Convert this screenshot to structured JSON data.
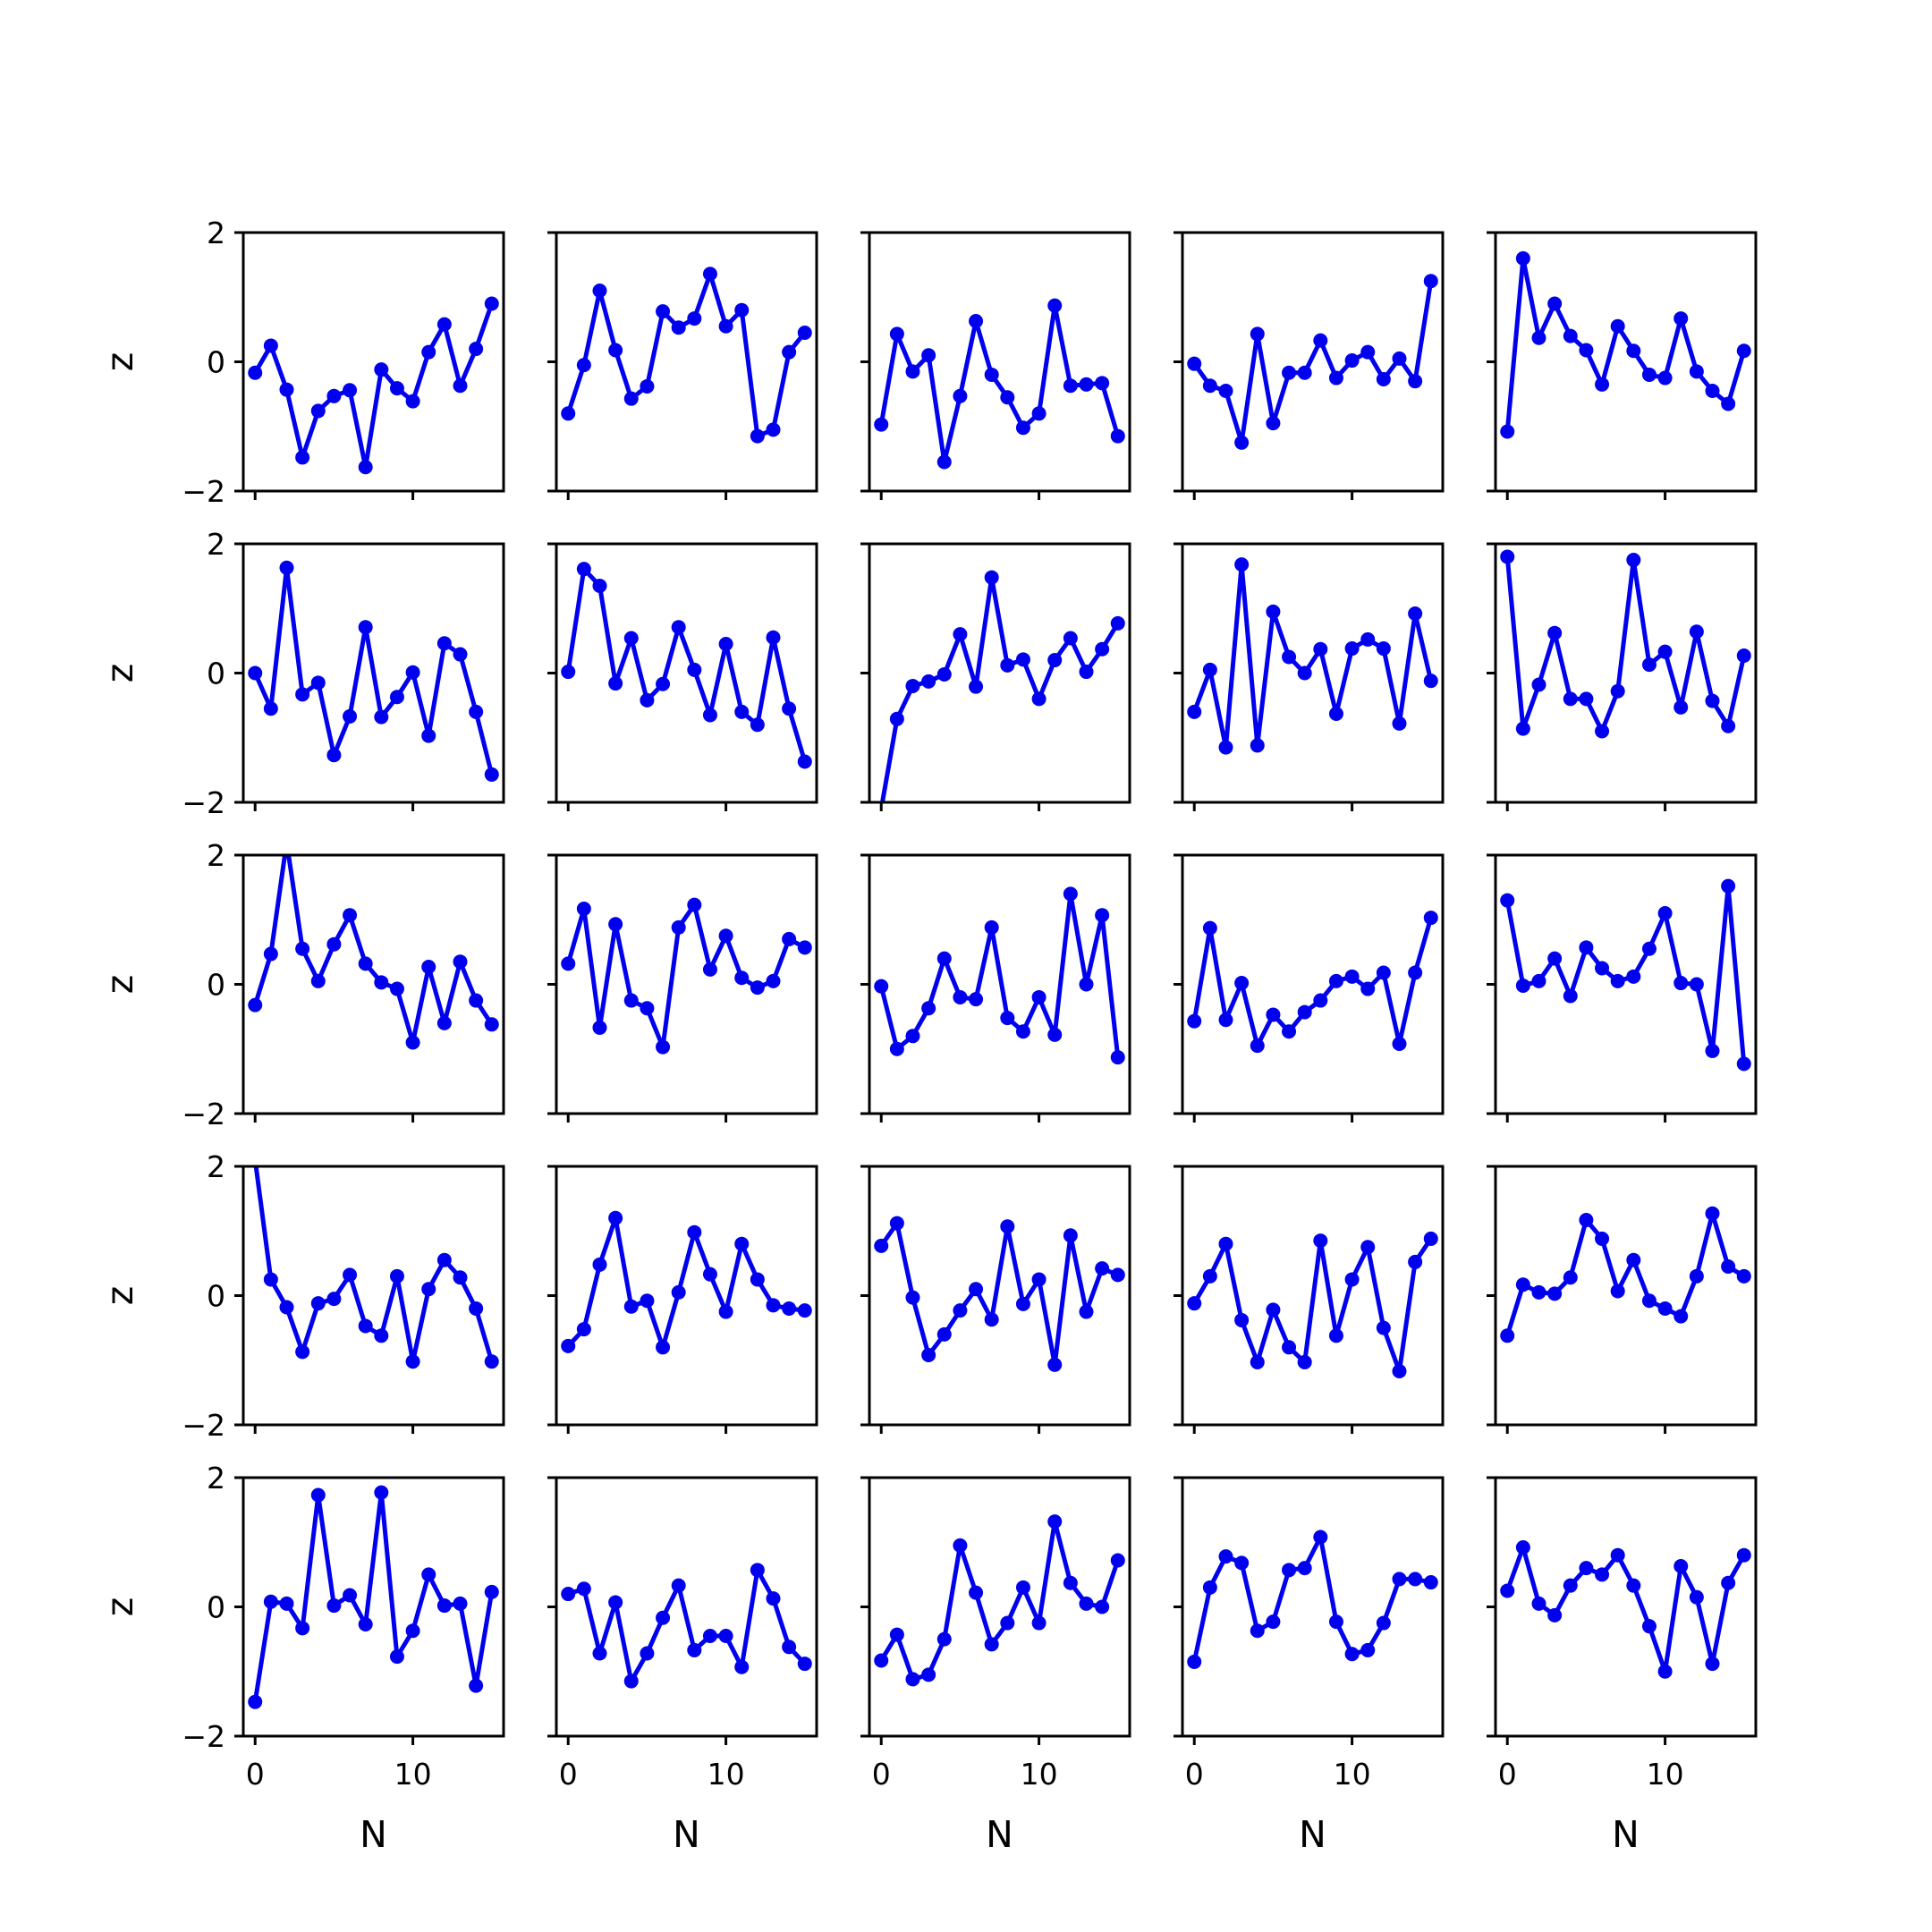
{
  "chart_data": {
    "type": "line",
    "layout": "5x5 small multiples",
    "xlabel": "N",
    "ylabel": "z",
    "xlim": [
      -0.75,
      15.75
    ],
    "ylim": [
      -2,
      2
    ],
    "xticks": [
      0,
      10
    ],
    "yticks": [
      -2,
      0,
      2
    ],
    "x": [
      0,
      1,
      2,
      3,
      4,
      5,
      6,
      7,
      8,
      9,
      10,
      11,
      12,
      13,
      14,
      15
    ],
    "line_color": "#0000ee",
    "marker": "circle",
    "panels": [
      {
        "values": [
          -0.17,
          0.25,
          -0.43,
          -1.48,
          -0.76,
          -0.53,
          -0.44,
          -1.63,
          -0.12,
          -0.41,
          -0.61,
          0.15,
          0.58,
          -0.37,
          0.2,
          0.9
        ]
      },
      {
        "values": [
          -0.8,
          -0.05,
          1.1,
          0.18,
          -0.57,
          -0.38,
          0.78,
          0.53,
          0.67,
          1.36,
          0.55,
          0.8,
          -1.15,
          -1.05,
          0.15,
          0.45
        ]
      },
      {
        "values": [
          -0.97,
          0.43,
          -0.15,
          0.1,
          -1.55,
          -0.53,
          0.63,
          -0.2,
          -0.55,
          -1.02,
          -0.8,
          0.87,
          -0.37,
          -0.35,
          -0.33,
          -1.15
        ]
      },
      {
        "values": [
          -0.03,
          -0.37,
          -0.45,
          -1.25,
          0.43,
          -0.95,
          -0.17,
          -0.17,
          0.33,
          -0.25,
          0.02,
          0.15,
          -0.27,
          0.05,
          -0.3,
          1.25
        ]
      },
      {
        "values": [
          -1.08,
          1.6,
          0.37,
          0.9,
          0.4,
          0.18,
          -0.35,
          0.55,
          0.17,
          -0.2,
          -0.25,
          0.67,
          -0.15,
          -0.45,
          -0.65,
          0.17
        ]
      },
      {
        "values": [
          0.0,
          -0.55,
          1.63,
          -0.33,
          -0.15,
          -1.27,
          -0.67,
          0.71,
          -0.68,
          -0.37,
          0.01,
          -0.97,
          0.46,
          0.29,
          -0.6,
          -1.57
        ]
      },
      {
        "values": [
          0.02,
          1.61,
          1.35,
          -0.16,
          0.54,
          -0.42,
          -0.17,
          0.71,
          0.05,
          -0.65,
          0.45,
          -0.6,
          -0.8,
          0.55,
          -0.55,
          -1.37
        ]
      },
      {
        "values": [
          -2.1,
          -0.71,
          -0.2,
          -0.13,
          -0.02,
          0.6,
          -0.21,
          1.48,
          0.12,
          0.21,
          -0.4,
          0.2,
          0.54,
          0.02,
          0.37,
          0.77
        ]
      },
      {
        "values": [
          -0.6,
          0.05,
          -1.15,
          1.68,
          -1.12,
          0.95,
          0.25,
          0.0,
          0.37,
          -0.63,
          0.38,
          0.52,
          0.38,
          -0.78,
          0.92,
          -0.12
        ]
      },
      {
        "values": [
          1.8,
          -0.86,
          -0.18,
          0.62,
          -0.4,
          -0.4,
          -0.9,
          -0.28,
          1.75,
          0.13,
          0.33,
          -0.53,
          0.64,
          -0.43,
          -0.82,
          0.27
        ]
      },
      {
        "values": [
          -0.32,
          0.47,
          2.2,
          0.55,
          0.05,
          0.62,
          1.07,
          0.32,
          0.03,
          -0.07,
          -0.9,
          0.27,
          -0.6,
          0.35,
          -0.25,
          -0.62
        ]
      },
      {
        "values": [
          0.32,
          1.17,
          -0.67,
          0.93,
          -0.25,
          -0.37,
          -0.97,
          0.88,
          1.23,
          0.23,
          0.75,
          0.1,
          -0.05,
          0.05,
          0.7,
          0.57
        ]
      },
      {
        "values": [
          -0.03,
          -1.0,
          -0.8,
          -0.37,
          0.4,
          -0.2,
          -0.23,
          0.88,
          -0.52,
          -0.73,
          -0.2,
          -0.78,
          1.4,
          0.0,
          1.07,
          -1.13
        ]
      },
      {
        "values": [
          -0.57,
          0.87,
          -0.55,
          0.02,
          -0.95,
          -0.47,
          -0.73,
          -0.43,
          -0.25,
          0.05,
          0.12,
          -0.07,
          0.18,
          -0.92,
          0.18,
          1.03
        ]
      },
      {
        "values": [
          1.3,
          -0.02,
          0.05,
          0.4,
          -0.18,
          0.57,
          0.25,
          0.05,
          0.12,
          0.55,
          1.1,
          0.02,
          0.0,
          -1.03,
          1.52,
          -1.23
        ]
      },
      {
        "values": [
          2.1,
          0.25,
          -0.18,
          -0.87,
          -0.12,
          -0.05,
          0.32,
          -0.47,
          -0.62,
          0.3,
          -1.02,
          0.1,
          0.55,
          0.28,
          -0.2,
          -1.02
        ]
      },
      {
        "values": [
          -0.78,
          -0.52,
          0.48,
          1.2,
          -0.17,
          -0.08,
          -0.8,
          0.05,
          0.98,
          0.33,
          -0.25,
          0.8,
          0.25,
          -0.15,
          -0.2,
          -0.23
        ]
      },
      {
        "values": [
          0.77,
          1.12,
          -0.03,
          -0.92,
          -0.6,
          -0.23,
          0.1,
          -0.37,
          1.07,
          -0.13,
          0.25,
          -1.07,
          0.93,
          -0.25,
          0.42,
          0.32
        ]
      },
      {
        "values": [
          -0.12,
          0.3,
          0.8,
          -0.38,
          -1.03,
          -0.22,
          -0.8,
          -1.03,
          0.85,
          -0.62,
          0.25,
          0.75,
          -0.5,
          -1.17,
          0.52,
          0.88
        ]
      },
      {
        "values": [
          -0.62,
          0.17,
          0.05,
          0.03,
          0.28,
          1.17,
          0.88,
          0.07,
          0.55,
          -0.08,
          -0.2,
          -0.32,
          0.3,
          1.27,
          0.45,
          0.3
        ]
      },
      {
        "values": [
          -1.47,
          0.08,
          0.05,
          -0.33,
          1.73,
          0.02,
          0.18,
          -0.27,
          1.77,
          -0.77,
          -0.37,
          0.5,
          0.02,
          0.05,
          -1.22,
          0.23
        ]
      },
      {
        "values": [
          0.2,
          0.28,
          -0.72,
          0.07,
          -1.15,
          -0.72,
          -0.17,
          0.33,
          -0.67,
          -0.45,
          -0.45,
          -0.93,
          0.57,
          0.13,
          -0.62,
          -0.88
        ]
      },
      {
        "values": [
          -0.83,
          -0.43,
          -1.12,
          -1.05,
          -0.5,
          0.95,
          0.22,
          -0.58,
          -0.25,
          0.3,
          -0.25,
          1.32,
          0.37,
          0.05,
          0.0,
          0.72
        ]
      },
      {
        "values": [
          -0.85,
          0.3,
          0.78,
          0.68,
          -0.37,
          -0.23,
          0.57,
          0.6,
          1.08,
          -0.23,
          -0.73,
          -0.67,
          -0.25,
          0.43,
          0.43,
          0.38
        ]
      },
      {
        "values": [
          0.25,
          0.92,
          0.05,
          -0.13,
          0.33,
          0.6,
          0.5,
          0.8,
          0.33,
          -0.3,
          -1.0,
          0.63,
          0.15,
          -0.88,
          0.37,
          0.8
        ]
      }
    ]
  }
}
